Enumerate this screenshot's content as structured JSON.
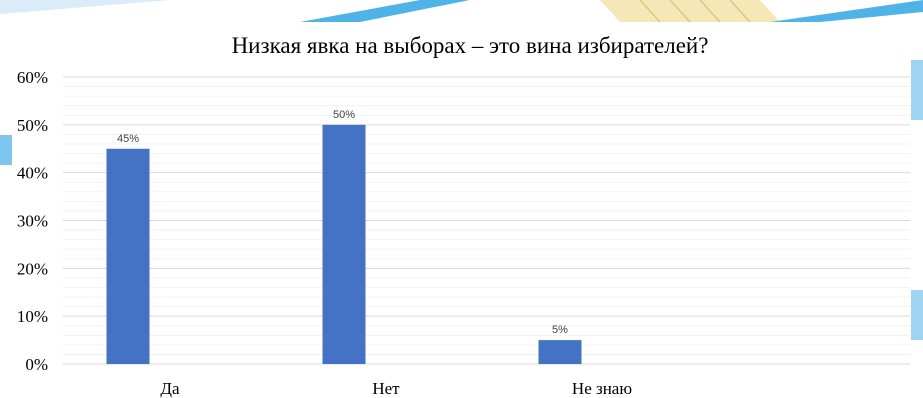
{
  "chart_data": {
    "type": "bar",
    "title": "Низкая явка на выборах – это вина избирателей?",
    "categories": [
      "Да",
      "Нет",
      "Не знаю"
    ],
    "values": [
      45,
      50,
      5
    ],
    "data_labels": [
      "45%",
      "50%",
      "5%"
    ],
    "y_ticks": [
      "0%",
      "10%",
      "20%",
      "30%",
      "40%",
      "50%",
      "60%"
    ],
    "ylim": [
      0,
      60
    ],
    "grid": true,
    "legend": "none",
    "colors": {
      "bar": "#4472c4",
      "grid": "#d9d9d9",
      "grid_minor": "#efefef",
      "decor_blue": "#4fb3e8",
      "decor_yellow": "#f3dea0"
    }
  }
}
